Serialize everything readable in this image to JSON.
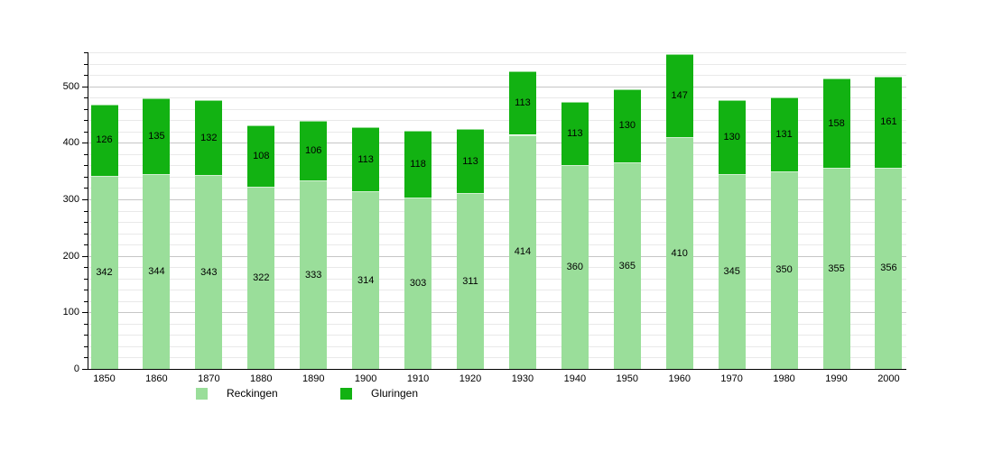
{
  "chart_data": {
    "type": "bar",
    "stacked": true,
    "title": "",
    "xlabel": "",
    "ylabel": "",
    "categories": [
      "1850",
      "1860",
      "1870",
      "1880",
      "1890",
      "1900",
      "1910",
      "1920",
      "1930",
      "1940",
      "1950",
      "1960",
      "1970",
      "1980",
      "1990",
      "2000"
    ],
    "series": [
      {
        "name": "Reckingen",
        "color": "#9ade9a",
        "values": [
          342,
          344,
          343,
          322,
          333,
          314,
          303,
          311,
          414,
          360,
          365,
          410,
          345,
          350,
          355,
          356
        ]
      },
      {
        "name": "Gluringen",
        "color": "#12b212",
        "values": [
          126,
          135,
          132,
          108,
          106,
          113,
          118,
          113,
          113,
          113,
          130,
          147,
          130,
          131,
          158,
          161
        ]
      }
    ],
    "ylim": [
      0,
      560
    ],
    "y_major_ticks": [
      0,
      100,
      200,
      300,
      400,
      500
    ],
    "y_major_tick_labels": [
      "0",
      "100",
      "200",
      "300",
      "400",
      "500"
    ],
    "y_minor_step": 20,
    "grid": "horizontal",
    "bar_labels": "values shown centered in each segment",
    "legend_position": "bottom"
  },
  "colors": {
    "background": "#ffffff",
    "axis": "#000000",
    "grid_minor": "#e9e9e9",
    "grid_major": "#c6c6c6",
    "text": "#000000",
    "series_reckingen": "#9ade9a",
    "series_gluringen": "#12b212"
  }
}
